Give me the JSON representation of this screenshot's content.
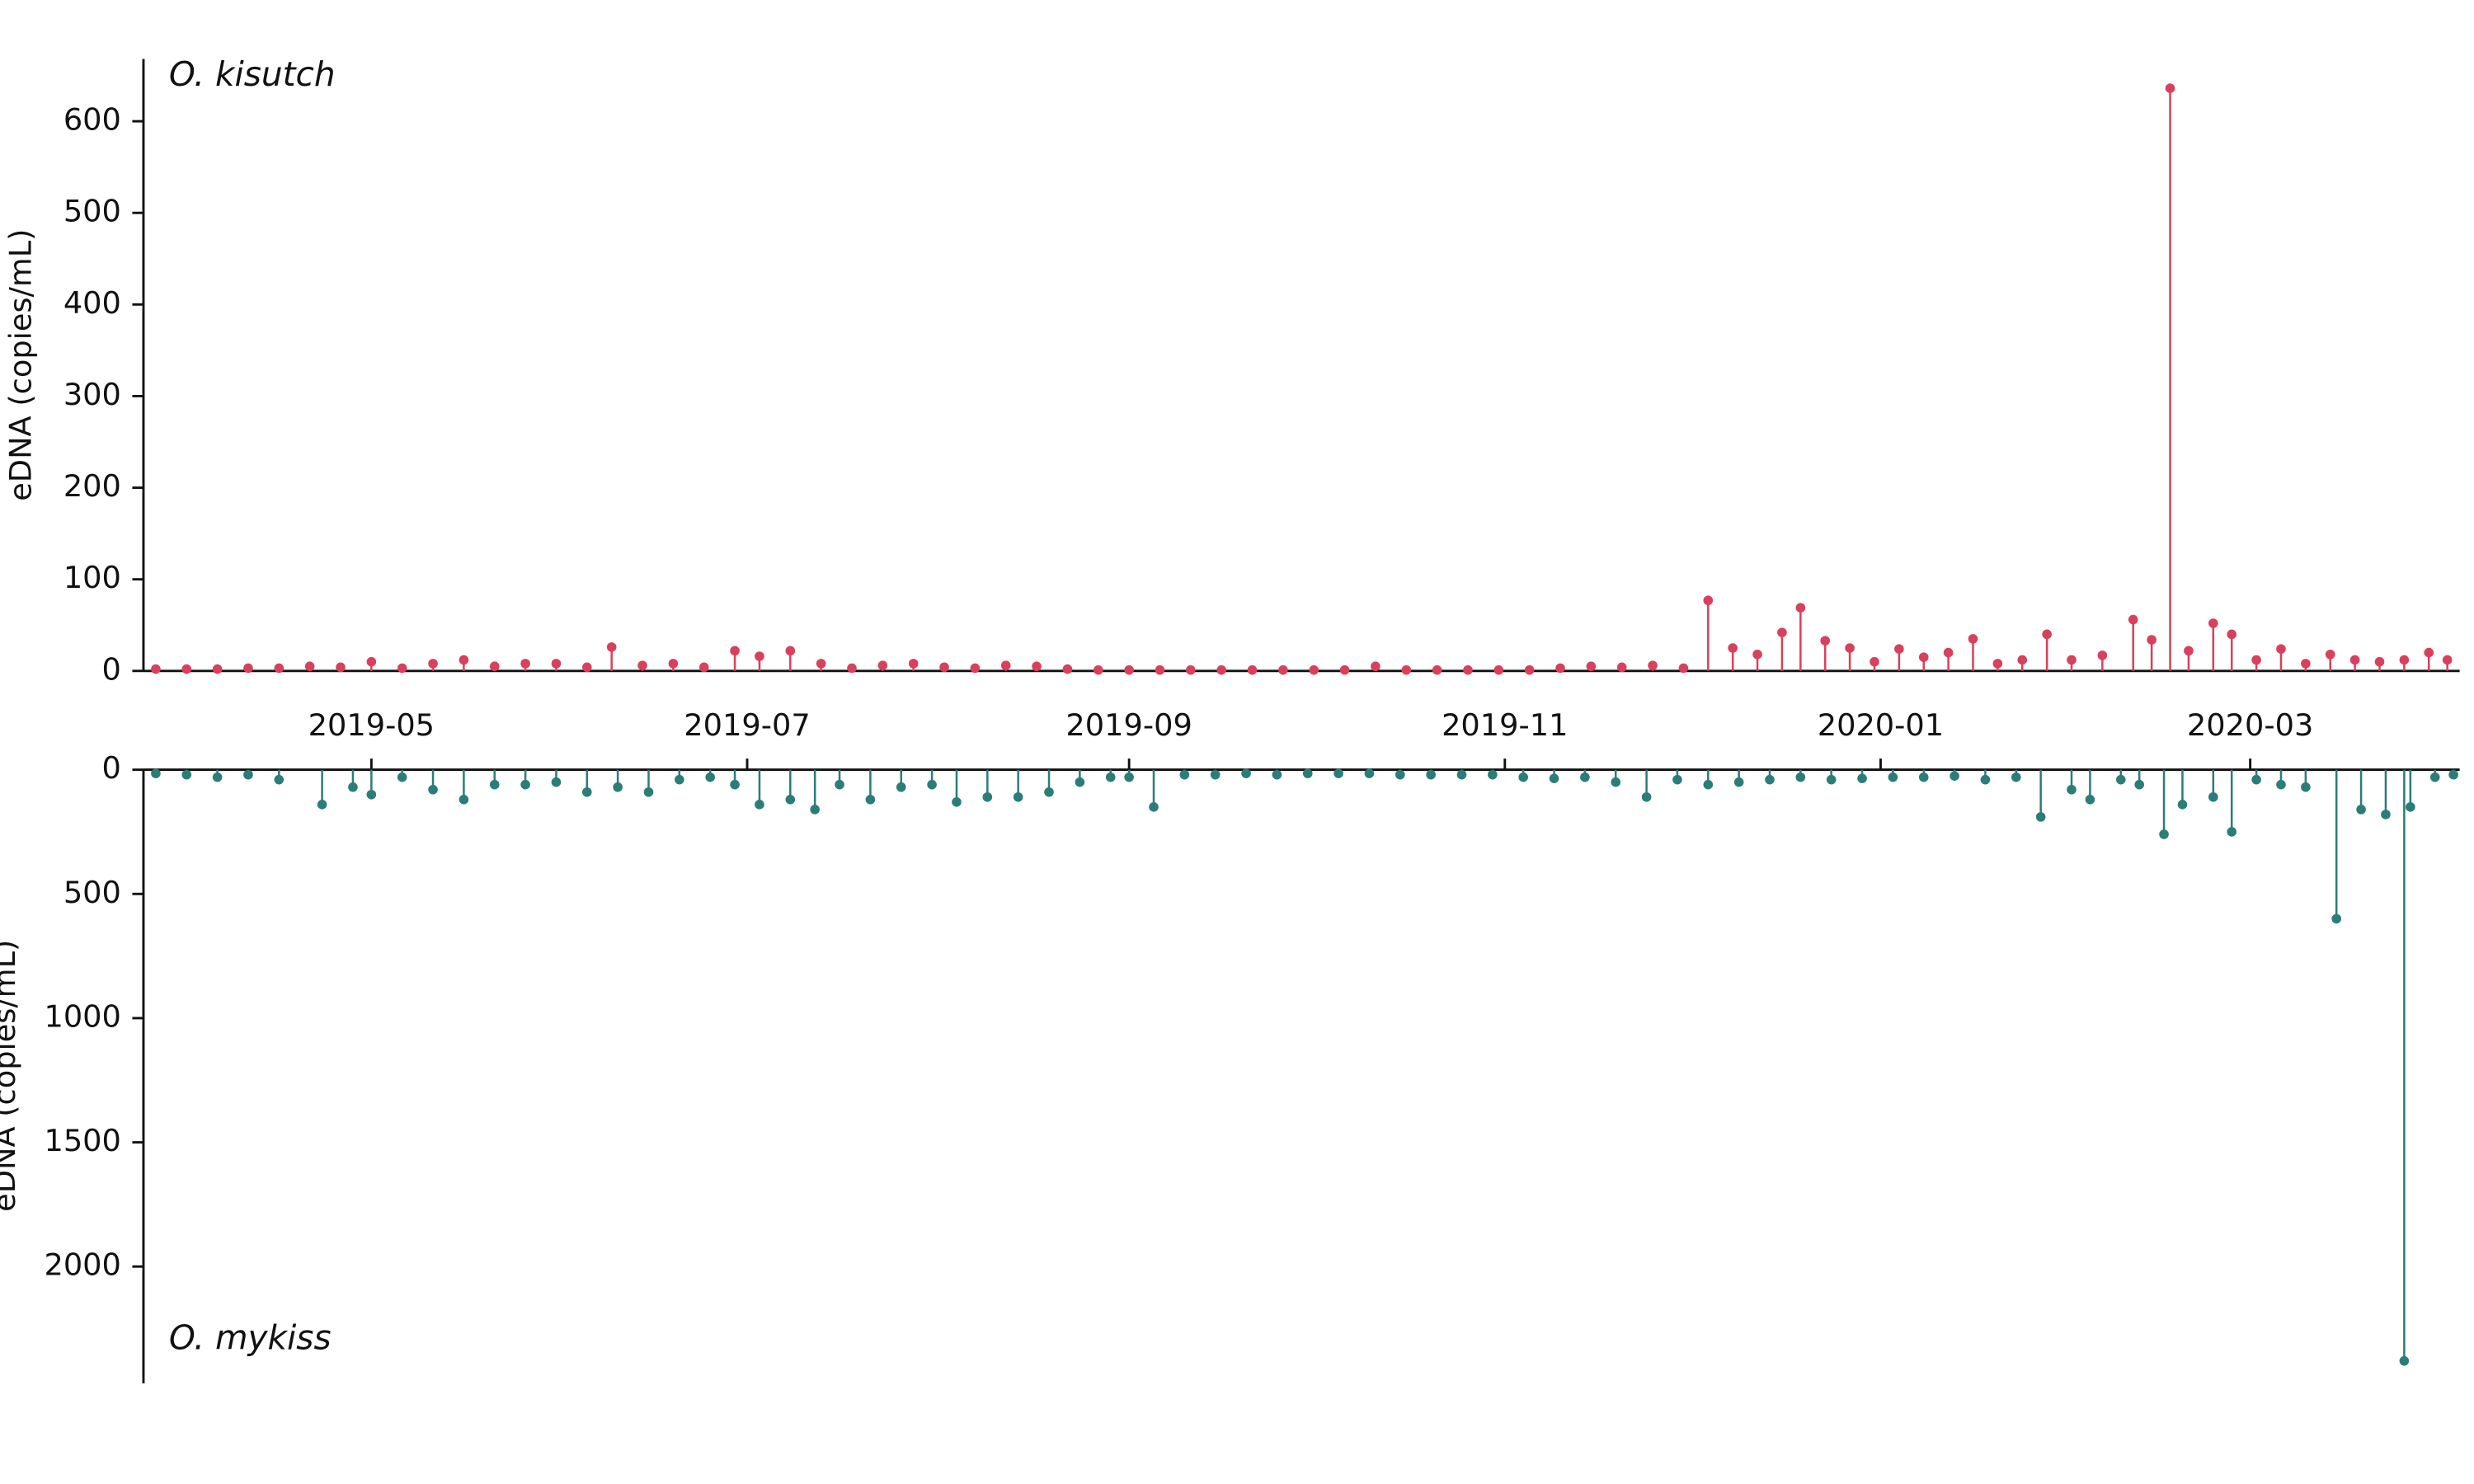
{
  "chart_data": [
    {
      "type": "stem",
      "annotation": "O. kisutch",
      "y_label": "eDNA (copies/mL)",
      "color": "#d8405c",
      "xlim": [
        "2019-03-25",
        "2020-04-04"
      ],
      "ylim": [
        0,
        668
      ],
      "yticks": [
        0,
        100,
        200,
        300,
        400,
        500,
        600
      ],
      "x": [
        "2019-03-27",
        "2019-04-01",
        "2019-04-06",
        "2019-04-11",
        "2019-04-16",
        "2019-04-21",
        "2019-04-26",
        "2019-05-01",
        "2019-05-06",
        "2019-05-11",
        "2019-05-16",
        "2019-05-21",
        "2019-05-26",
        "2019-05-31",
        "2019-06-05",
        "2019-06-09",
        "2019-06-14",
        "2019-06-19",
        "2019-06-24",
        "2019-06-29",
        "2019-07-03",
        "2019-07-08",
        "2019-07-13",
        "2019-07-18",
        "2019-07-23",
        "2019-07-28",
        "2019-08-02",
        "2019-08-07",
        "2019-08-12",
        "2019-08-17",
        "2019-08-22",
        "2019-08-27",
        "2019-09-01",
        "2019-09-06",
        "2019-09-11",
        "2019-09-16",
        "2019-09-21",
        "2019-09-26",
        "2019-10-01",
        "2019-10-06",
        "2019-10-11",
        "2019-10-16",
        "2019-10-21",
        "2019-10-26",
        "2019-10-31",
        "2019-11-05",
        "2019-11-10",
        "2019-11-15",
        "2019-11-20",
        "2019-11-25",
        "2019-11-30",
        "2019-12-04",
        "2019-12-08",
        "2019-12-12",
        "2019-12-16",
        "2019-12-19",
        "2019-12-23",
        "2019-12-27",
        "2019-12-31",
        "2020-01-04",
        "2020-01-08",
        "2020-01-12",
        "2020-01-16",
        "2020-01-20",
        "2020-01-24",
        "2020-01-28",
        "2020-02-01",
        "2020-02-06",
        "2020-02-11",
        "2020-02-14",
        "2020-02-17",
        "2020-02-20",
        "2020-02-24",
        "2020-02-27",
        "2020-03-02",
        "2020-03-06",
        "2020-03-10",
        "2020-03-14",
        "2020-03-18",
        "2020-03-22",
        "2020-03-26",
        "2020-03-30",
        "2020-04-02"
      ],
      "values": [
        2,
        2,
        2,
        3,
        3,
        5,
        4,
        10,
        3,
        8,
        12,
        5,
        8,
        8,
        4,
        26,
        6,
        8,
        4,
        22,
        16,
        22,
        8,
        3,
        6,
        8,
        4,
        3,
        6,
        5,
        2,
        1,
        1,
        1,
        1,
        1,
        1,
        1,
        1,
        1,
        5,
        1,
        1,
        1,
        1,
        1,
        3,
        5,
        4,
        6,
        3,
        77,
        25,
        18,
        42,
        69,
        33,
        25,
        10,
        24,
        15,
        20,
        35,
        8,
        12,
        40,
        12,
        17,
        56,
        34,
        636,
        22,
        52,
        40,
        12,
        24,
        8,
        18,
        12,
        10,
        12,
        20,
        12
      ]
    },
    {
      "type": "stem",
      "annotation": "O. mykiss",
      "y_label": "eDNA (copies/mL)",
      "color": "#2b7d78",
      "y_inverted": true,
      "xlim": [
        "2019-03-25",
        "2020-04-04"
      ],
      "ylim": [
        0,
        2470
      ],
      "yticks": [
        0,
        500,
        1000,
        1500,
        2000
      ],
      "xticks": [
        {
          "value": "2019-05-01",
          "label": "2019-05"
        },
        {
          "value": "2019-07-01",
          "label": "2019-07"
        },
        {
          "value": "2019-09-01",
          "label": "2019-09"
        },
        {
          "value": "2019-11-01",
          "label": "2019-11"
        },
        {
          "value": "2020-01-01",
          "label": "2020-01"
        },
        {
          "value": "2020-03-01",
          "label": "2020-03"
        }
      ],
      "x": [
        "2019-03-27",
        "2019-04-01",
        "2019-04-06",
        "2019-04-11",
        "2019-04-16",
        "2019-04-23",
        "2019-04-28",
        "2019-05-01",
        "2019-05-06",
        "2019-05-11",
        "2019-05-16",
        "2019-05-21",
        "2019-05-26",
        "2019-05-31",
        "2019-06-05",
        "2019-06-10",
        "2019-06-15",
        "2019-06-20",
        "2019-06-25",
        "2019-06-29",
        "2019-07-03",
        "2019-07-08",
        "2019-07-12",
        "2019-07-16",
        "2019-07-21",
        "2019-07-26",
        "2019-07-31",
        "2019-08-04",
        "2019-08-09",
        "2019-08-14",
        "2019-08-19",
        "2019-08-24",
        "2019-08-29",
        "2019-09-01",
        "2019-09-05",
        "2019-09-10",
        "2019-09-15",
        "2019-09-20",
        "2019-09-25",
        "2019-09-30",
        "2019-10-05",
        "2019-10-10",
        "2019-10-15",
        "2019-10-20",
        "2019-10-25",
        "2019-10-30",
        "2019-11-04",
        "2019-11-09",
        "2019-11-14",
        "2019-11-19",
        "2019-11-24",
        "2019-11-29",
        "2019-12-04",
        "2019-12-09",
        "2019-12-14",
        "2019-12-19",
        "2019-12-24",
        "2019-12-29",
        "2020-01-03",
        "2020-01-08",
        "2020-01-13",
        "2020-01-18",
        "2020-01-23",
        "2020-01-27",
        "2020-02-01",
        "2020-02-04",
        "2020-02-09",
        "2020-02-12",
        "2020-02-16",
        "2020-02-19",
        "2020-02-24",
        "2020-02-27",
        "2020-03-02",
        "2020-03-06",
        "2020-03-10",
        "2020-03-15",
        "2020-03-19",
        "2020-03-23",
        "2020-03-26",
        "2020-03-27",
        "2020-03-31",
        "2020-04-03"
      ],
      "values": [
        15,
        20,
        30,
        20,
        40,
        140,
        70,
        100,
        30,
        80,
        120,
        60,
        60,
        50,
        90,
        70,
        90,
        40,
        30,
        60,
        140,
        120,
        160,
        60,
        120,
        70,
        60,
        130,
        110,
        110,
        90,
        50,
        30,
        30,
        150,
        20,
        20,
        15,
        20,
        15,
        15,
        15,
        20,
        20,
        20,
        20,
        30,
        35,
        30,
        50,
        110,
        40,
        60,
        50,
        40,
        30,
        40,
        35,
        30,
        30,
        25,
        40,
        30,
        190,
        80,
        120,
        40,
        60,
        260,
        140,
        110,
        250,
        40,
        60,
        70,
        600,
        160,
        180,
        2380,
        150,
        30,
        20
      ]
    }
  ]
}
